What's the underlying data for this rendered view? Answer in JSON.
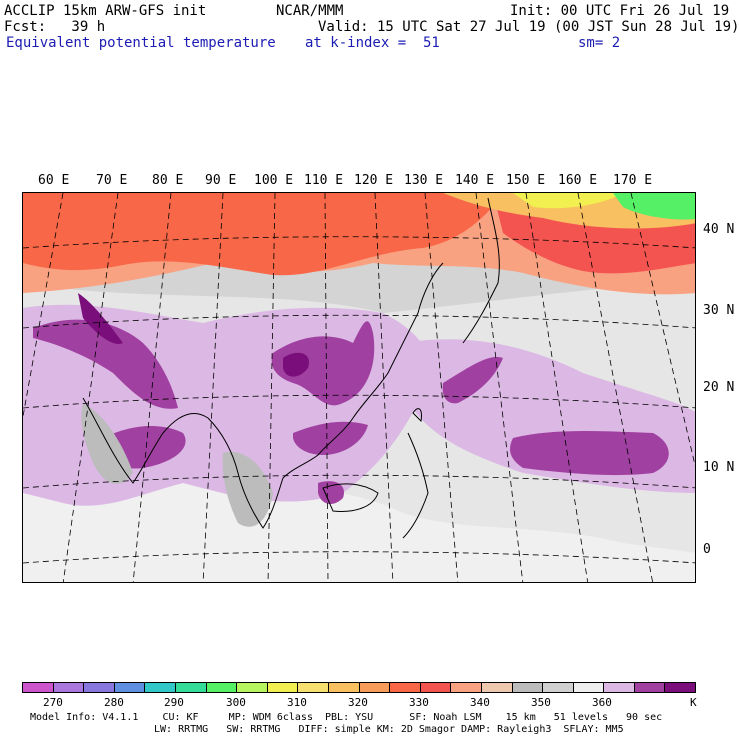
{
  "header": {
    "line1_left": "ACCLIP 15km ARW-GFS init",
    "line1_center": "NCAR/MMM",
    "line1_right": "Init: 00 UTC Fri 26 Jul 19",
    "line2_left": "Fcst:   39 h",
    "line2_right": "Valid: 15 UTC Sat 27 Jul 19 (00 JST Sun 28 Jul 19)",
    "field_name": "Equivalent potential temperature",
    "level": "at k-index =  51",
    "smoothing": "sm= 2"
  },
  "axes": {
    "longitude_labels": [
      "60 E",
      "70 E",
      "80 E",
      "90 E",
      "100 E",
      "110 E",
      "120 E",
      "130 E",
      "140 E",
      "150 E",
      "160 E",
      "170 E"
    ],
    "latitude_labels": [
      "40 N",
      "30 N",
      "20 N",
      "10 N",
      "0"
    ]
  },
  "colorbar": {
    "unit": "K",
    "tick_labels": [
      "270",
      "280",
      "290",
      "300",
      "310",
      "320",
      "330",
      "340",
      "350",
      "360"
    ],
    "colors": [
      "#cc55cc",
      "#aa77dd",
      "#8877dd",
      "#5f8fe0",
      "#33c8c8",
      "#33dd99",
      "#55f065",
      "#b6f460",
      "#f2f050",
      "#f8e070",
      "#f8c060",
      "#f89c5a",
      "#f86848",
      "#f45450",
      "#f8a282",
      "#eec8ae",
      "#bcbcbc",
      "#d0d0d0",
      "#eeeeee",
      "#dcb8e4",
      "#a040a0",
      "#7a0e7a"
    ]
  },
  "model_info": {
    "line1": "Model Info: V4.1.1    CU: KF     MP: WDM 6class  PBL: YSU      SF: Noah LSM    15 km   51 levels   90 sec",
    "line2": "LW: RRTMG   SW: RRTMG   DIFF: simple KM: 2D Smagor DAMP: Rayleigh3  SFLAY: MM5"
  }
}
